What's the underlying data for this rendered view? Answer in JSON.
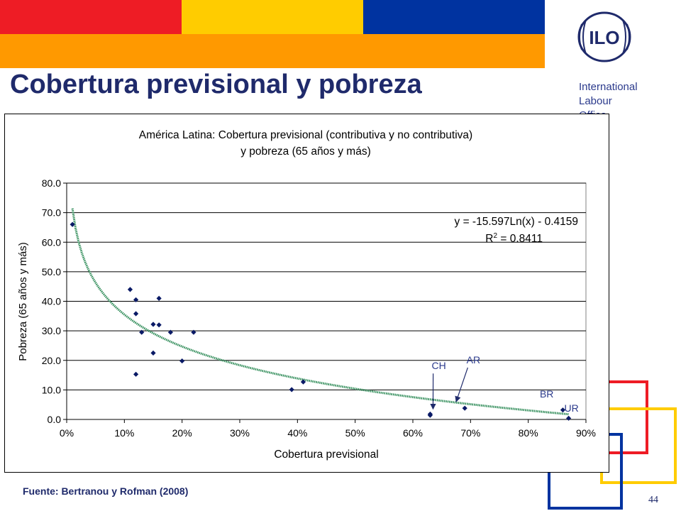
{
  "slide": {
    "title": "Cobertura previsional y pobreza",
    "organization": [
      "International",
      "Labour",
      "Office"
    ],
    "source": "Fuente: Bertranou y Rofman (2008)",
    "page_number": "44",
    "colors": {
      "red": "#ee1c25",
      "yellow": "#ffcc00",
      "blue": "#0033a0",
      "orange": "#ff9900",
      "title": "#1f2a6b"
    },
    "logo_text": "ILO"
  },
  "chart_data": {
    "type": "scatter",
    "title_lines": [
      "América Latina: Cobertura previsional (contributiva y no contributiva)",
      "y pobreza (65 años y más)"
    ],
    "xlabel": "Cobertura previsional",
    "ylabel": "Pobreza (65 años y más)",
    "xlim": [
      0,
      0.9
    ],
    "ylim": [
      0,
      80
    ],
    "x_ticks": [
      0,
      0.1,
      0.2,
      0.3,
      0.4,
      0.5,
      0.6,
      0.7,
      0.8,
      0.9
    ],
    "x_tick_labels": [
      "0%",
      "10%",
      "20%",
      "30%",
      "40%",
      "50%",
      "60%",
      "70%",
      "80%",
      "90%"
    ],
    "y_ticks": [
      0,
      10,
      20,
      30,
      40,
      50,
      60,
      70,
      80
    ],
    "y_tick_labels": [
      "0.0",
      "10.0",
      "20.0",
      "30.0",
      "40.0",
      "50.0",
      "60.0",
      "70.0",
      "80.0"
    ],
    "grid": "horizontal",
    "marker_color": "#0a1a66",
    "trend_color": "#2e8b57",
    "points": [
      {
        "x": 0.01,
        "y": 66.0
      },
      {
        "x": 0.11,
        "y": 44.0
      },
      {
        "x": 0.12,
        "y": 40.5
      },
      {
        "x": 0.12,
        "y": 35.8
      },
      {
        "x": 0.12,
        "y": 15.3
      },
      {
        "x": 0.13,
        "y": 29.5
      },
      {
        "x": 0.15,
        "y": 32.2
      },
      {
        "x": 0.15,
        "y": 22.5
      },
      {
        "x": 0.16,
        "y": 32.0
      },
      {
        "x": 0.16,
        "y": 41.0
      },
      {
        "x": 0.18,
        "y": 29.5
      },
      {
        "x": 0.2,
        "y": 19.8
      },
      {
        "x": 0.22,
        "y": 29.5
      },
      {
        "x": 0.39,
        "y": 10.1
      },
      {
        "x": 0.41,
        "y": 12.7
      },
      {
        "x": 0.63,
        "y": 1.4
      },
      {
        "x": 0.63,
        "y": 1.8
      },
      {
        "x": 0.69,
        "y": 3.8
      },
      {
        "x": 0.86,
        "y": 3.2
      },
      {
        "x": 0.87,
        "y": 0.4
      }
    ],
    "trendline": {
      "equation": "y = -15.597Ln(x) - 0.4159",
      "r2_label": "R",
      "r2_sup": "2",
      "r2_value": " = 0.8411",
      "slope": -15.597,
      "intercept": -0.4159,
      "x_from": 0.01,
      "x_to": 0.87
    },
    "annotations": [
      {
        "label": "CH",
        "x": 0.645,
        "y": 17.0,
        "arrow_to": {
          "x": 0.635,
          "y": 3.5
        }
      },
      {
        "label": "AR",
        "x": 0.705,
        "y": 19.0,
        "arrow_to": {
          "x": 0.675,
          "y": 6.0
        }
      },
      {
        "label": "BR",
        "x": 0.832,
        "y": 7.5
      },
      {
        "label": "UR",
        "x": 0.875,
        "y": 2.7
      }
    ]
  }
}
